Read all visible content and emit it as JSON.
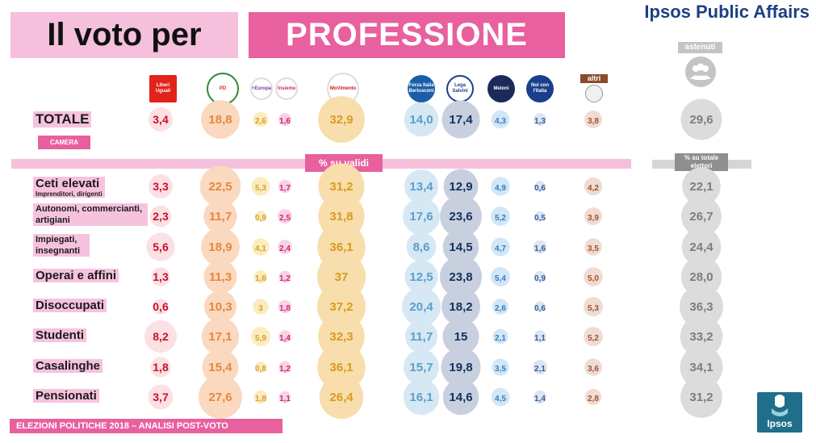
{
  "header": {
    "title_part1": "Il voto per",
    "title_part2": "PROFESSIONE",
    "brand": "Ipsos Public Affairs"
  },
  "labels": {
    "camera": "CAMERA",
    "su_validi": "% su validi",
    "astenuti": "astenuti",
    "su_totale": "% su totale elettori",
    "footer": "ELEZIONI POLITICHE 2018 – ANALISI POST-VOTO",
    "ipsos_logo": "Ipsos"
  },
  "parties": [
    {
      "key": "leu",
      "logo_text": "Liberi Uguali"
    },
    {
      "key": "pd",
      "logo_text": "PD"
    },
    {
      "key": "europa",
      "logo_text": "+Europa"
    },
    {
      "key": "insieme",
      "logo_text": "Insieme"
    },
    {
      "key": "m5s",
      "logo_text": "MoVimento"
    },
    {
      "key": "fi",
      "logo_text": "Forza Italia Berlusconi"
    },
    {
      "key": "lega",
      "logo_text": "Lega Salvini"
    },
    {
      "key": "fdi",
      "logo_text": "Meloni"
    },
    {
      "key": "nci",
      "logo_text": "Noi con l'Italia"
    },
    {
      "key": "altri",
      "logo_text": "altri"
    }
  ],
  "colors": {
    "leu": "#c8102e",
    "pd": "#e8873a",
    "europa": "#d4a12a",
    "insieme": "#d4247a",
    "m5s": "#d99a1e",
    "fi": "#5b9ec9",
    "lega": "#14305f",
    "fdi": "#2f7fc1",
    "nci": "#2f5f9e",
    "altri": "#a0522d",
    "astenuti": "#7d7d7d",
    "pink_bg": "#f4c0dc",
    "pink_strong": "#e8609e"
  },
  "chart_data": {
    "type": "table",
    "title": "Il voto per PROFESSIONE",
    "unit": "% su validi",
    "columns": [
      "LeU",
      "PD",
      "+Europa",
      "Insieme",
      "M5S",
      "Forza Italia",
      "Lega",
      "FdI",
      "Noi con l'Italia",
      "altri",
      "astenuti"
    ],
    "rows": [
      {
        "label": "TOTALE",
        "sub": "",
        "values": [
          "3,4",
          "18,8",
          "2,6",
          "1,6",
          "32,9",
          "14,0",
          "17,4",
          "4,3",
          "1,3",
          "3,8",
          "29,6"
        ]
      },
      {
        "label": "Ceti elevati",
        "sub": "Imprenditori, dirigenti",
        "values": [
          "3,3",
          "22,5",
          "5,3",
          "1,7",
          "31,2",
          "13,4",
          "12,9",
          "4,9",
          "0,6",
          "4,2",
          "22,1"
        ]
      },
      {
        "label": "Autonomi, commercianti, artigiani",
        "sub": "",
        "values": [
          "2,3",
          "11,7",
          "0,9",
          "2,5",
          "31,8",
          "17,6",
          "23,6",
          "5,2",
          "0,5",
          "3,9",
          "26,7"
        ]
      },
      {
        "label": "Impiegati, insegnanti",
        "sub": "",
        "values": [
          "5,6",
          "18,9",
          "4,1",
          "2,4",
          "36,1",
          "8,6",
          "14,5",
          "4,7",
          "1,6",
          "3,5",
          "24,4"
        ]
      },
      {
        "label": "Operai e affini",
        "sub": "",
        "values": [
          "1,3",
          "11,3",
          "1,6",
          "1,2",
          "37",
          "12,5",
          "23,8",
          "5,4",
          "0,9",
          "5,0",
          "28,0"
        ]
      },
      {
        "label": "Disoccupati",
        "sub": "",
        "values": [
          "0,6",
          "10,3",
          "3",
          "1,8",
          "37,2",
          "20,4",
          "18,2",
          "2,6",
          "0,6",
          "5,3",
          "36,3"
        ]
      },
      {
        "label": "Studenti",
        "sub": "",
        "values": [
          "8,2",
          "17,1",
          "5,9",
          "1,4",
          "32,3",
          "11,7",
          "15",
          "2,1",
          "1,1",
          "5,2",
          "33,2"
        ]
      },
      {
        "label": "Casalinghe",
        "sub": "",
        "values": [
          "1,8",
          "15,4",
          "0,8",
          "1,2",
          "36,1",
          "15,7",
          "19,8",
          "3,5",
          "2,1",
          "3,6",
          "34,1"
        ]
      },
      {
        "label": "Pensionati",
        "sub": "",
        "values": [
          "3,7",
          "27,6",
          "1,8",
          "1,1",
          "26,4",
          "16,1",
          "14,6",
          "4,5",
          "1,4",
          "2,8",
          "31,2"
        ]
      }
    ]
  }
}
